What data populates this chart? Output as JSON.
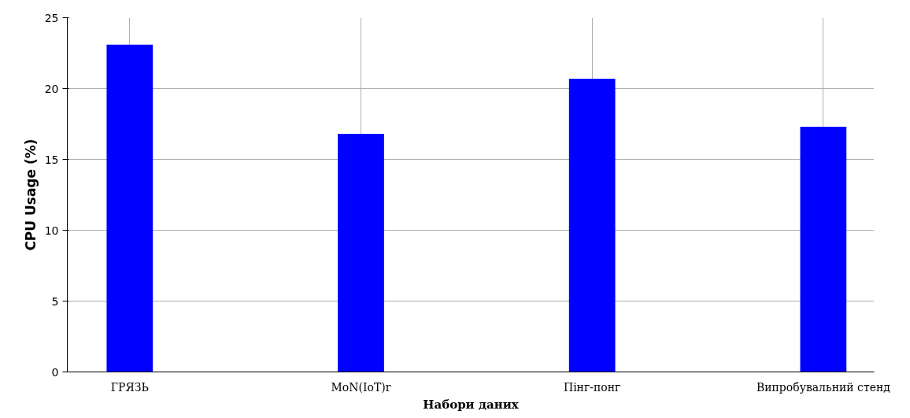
{
  "chart_data": {
    "type": "bar",
    "xlabel": "Набори даних",
    "ylabel": "CPU Usage (%)",
    "categories": [
      "ГРЯЗЬ",
      "MoN(IoT)r",
      "Пінг-понг",
      "Випробувальний стенд"
    ],
    "values": [
      23.1,
      16.8,
      20.7,
      17.3
    ],
    "color": "#0000ff",
    "ylim": [
      0,
      25
    ],
    "yticks": [
      0,
      5,
      10,
      15,
      20,
      25
    ],
    "grid": true
  }
}
